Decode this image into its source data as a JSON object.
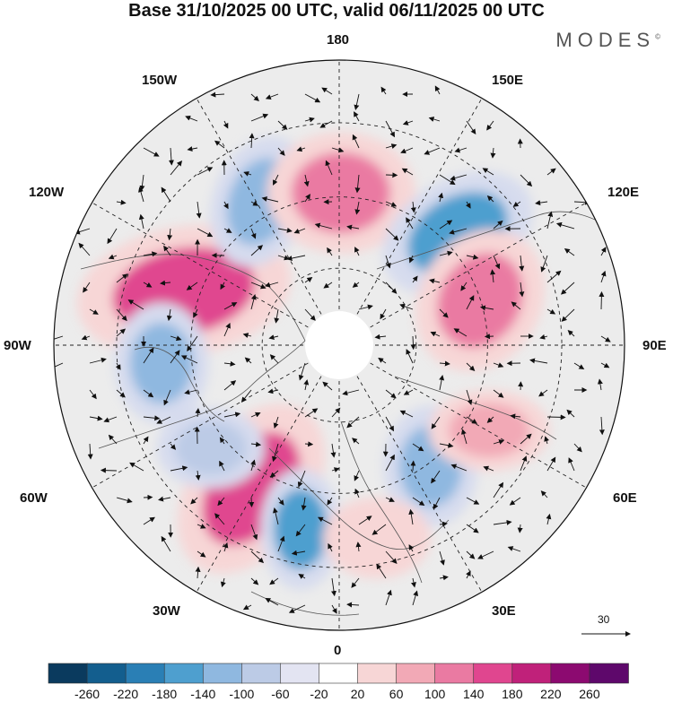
{
  "title": "Base 31/10/2025 00 UTC, valid 06/11/2025 00 UTC",
  "brand": "MODES",
  "brand_mark": "©",
  "longitude_labels": {
    "top": "180",
    "top_left": "150W",
    "top_right": "150E",
    "upper_left": "120W",
    "upper_right": "120E",
    "left": "90W",
    "right": "90E",
    "lower_left": "60W",
    "lower_right": "60E",
    "bottom_left": "30W",
    "bottom_right": "30E",
    "bottom": "0"
  },
  "reference_vector": {
    "label": "30"
  },
  "colorbar": {
    "ticks": [
      "-260",
      "-220",
      "-180",
      "-140",
      "-100",
      "-60",
      "-20",
      "20",
      "60",
      "100",
      "140",
      "180",
      "220",
      "260"
    ],
    "colors": [
      "#0a3a5e",
      "#135e8e",
      "#2a7fb5",
      "#4e9fcf",
      "#8fb8e0",
      "#bccbe6",
      "#e3e4f2",
      "#ffffff",
      "#f7d6d6",
      "#f2a9b6",
      "#ea7aa2",
      "#e0468f",
      "#c0217a",
      "#8c0a70",
      "#5e086b"
    ]
  },
  "anomalies": [
    {
      "name": "anomaly-pos-north-pacific",
      "value": 200,
      "color": "#e0468f"
    },
    {
      "name": "anomaly-neg-alaska",
      "value": -140,
      "color": "#8fb8e0"
    },
    {
      "name": "anomaly-pos-bering",
      "value": 160,
      "color": "#ea7aa2"
    },
    {
      "name": "anomaly-neg-east-siberia",
      "value": -180,
      "color": "#4e9fcf"
    },
    {
      "name": "anomaly-pos-siberia",
      "value": 140,
      "color": "#ea7aa2"
    },
    {
      "name": "anomaly-neg-canada",
      "value": -120,
      "color": "#8fb8e0"
    },
    {
      "name": "anomaly-pos-north-atlantic",
      "value": 200,
      "color": "#e0468f"
    },
    {
      "name": "anomaly-neg-mid-atlantic",
      "value": -160,
      "color": "#4e9fcf"
    },
    {
      "name": "anomaly-neg-scandinavia",
      "value": -140,
      "color": "#8fb8e0"
    },
    {
      "name": "anomaly-pos-west-siberia",
      "value": 120,
      "color": "#f2a9b6"
    },
    {
      "name": "anomaly-pos-europe",
      "value": 80,
      "color": "#f7d6d6"
    },
    {
      "name": "anomaly-neg-labrador",
      "value": -100,
      "color": "#bccbe6"
    }
  ]
}
